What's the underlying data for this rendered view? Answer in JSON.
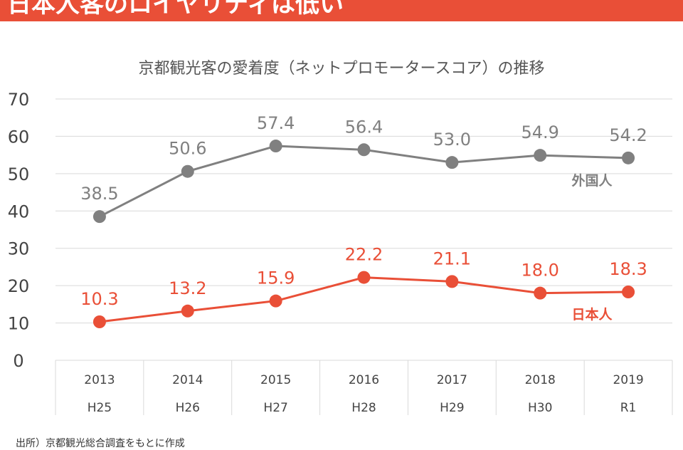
{
  "header": {
    "title": "日本人客のロイヤリティは低い"
  },
  "source": "出所）京都観光総合調査をもとに作成",
  "chart_data": {
    "type": "line",
    "title": "京都観光客の愛着度（ネットプロモータースコア）の推移",
    "categories": [
      "2013",
      "2014",
      "2015",
      "2016",
      "2017",
      "2018",
      "2019"
    ],
    "categories2": [
      "H25",
      "H26",
      "H27",
      "H28",
      "H29",
      "H30",
      "R1"
    ],
    "ylim": [
      0,
      70
    ],
    "yticks": [
      "0",
      "10",
      "20",
      "30",
      "40",
      "50",
      "60",
      "70"
    ],
    "grid": true,
    "series": [
      {
        "name": "外国人",
        "values": [
          38.5,
          50.6,
          57.4,
          56.4,
          53.0,
          54.9,
          54.2
        ],
        "color": "#808080"
      },
      {
        "name": "日本人",
        "values": [
          10.3,
          13.2,
          15.9,
          22.2,
          21.1,
          18.0,
          18.3
        ],
        "color": "#e94f37"
      }
    ]
  }
}
